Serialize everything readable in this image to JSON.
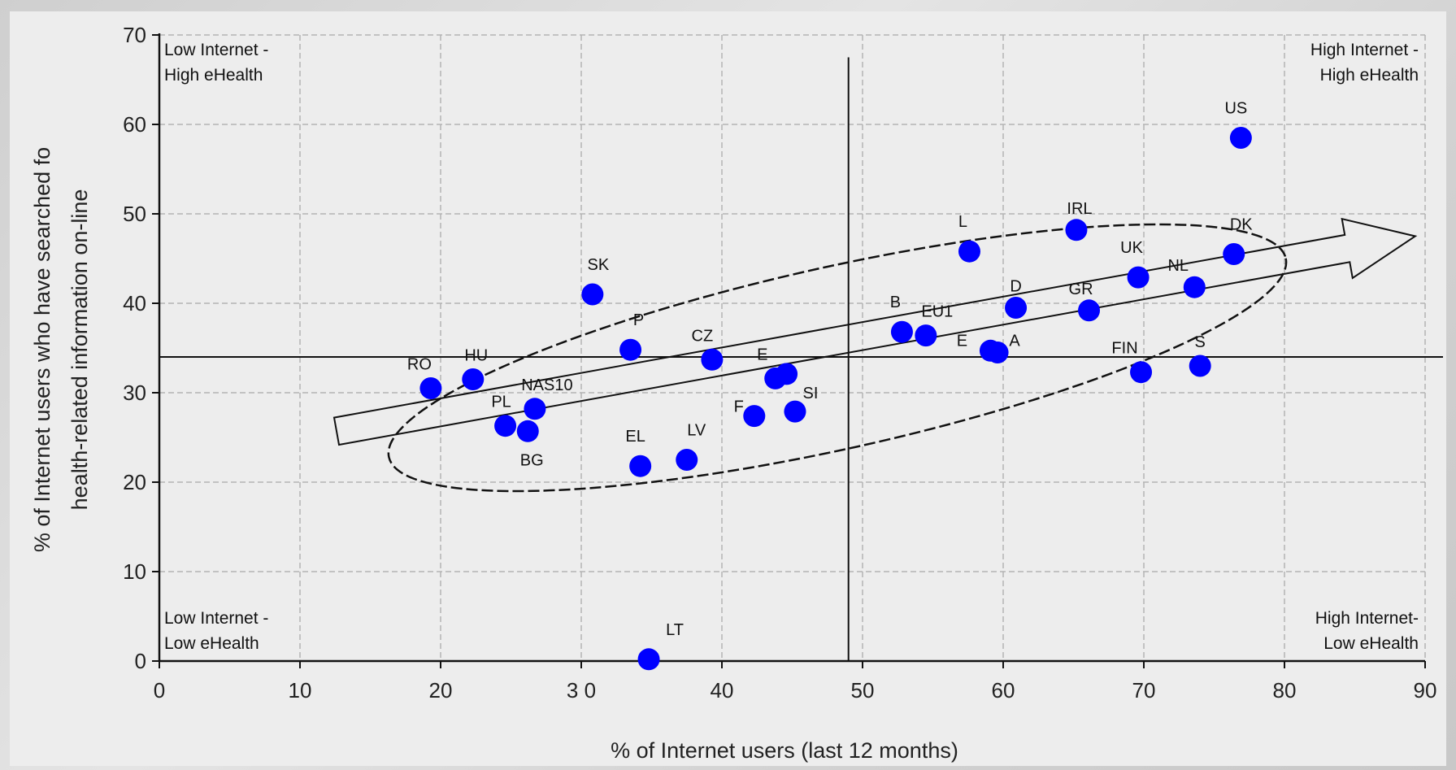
{
  "chart_data": {
    "type": "scatter",
    "xlabel": "% of Internet users (last 12 months)",
    "ylabel_lines": [
      "% of Internet users who have searched fo",
      "health-related information on-line"
    ],
    "xlim": [
      0,
      90
    ],
    "ylim": [
      0,
      70
    ],
    "x_ticks": [
      "0",
      "10",
      "20",
      "3 0",
      "40",
      "50",
      "60",
      "70",
      "80",
      "90"
    ],
    "y_ticks": [
      "0",
      "10",
      "20",
      "30",
      "40",
      "50",
      "60",
      "70"
    ],
    "grid": true,
    "point_color": "#0000ff",
    "threshold_x": 49,
    "threshold_y": 34,
    "quadrant_labels": {
      "top_left": [
        "Low Internet -",
        "High eHealth"
      ],
      "top_right": [
        "High Internet -",
        "High eHealth"
      ],
      "bottom_left": [
        "Low Internet -",
        "Low eHealth"
      ],
      "bottom_right": [
        "High Internet-",
        "Low eHealth"
      ]
    },
    "points": [
      {
        "label": "RO",
        "x": 19.3,
        "y": 30.5
      },
      {
        "label": "HU",
        "x": 22.3,
        "y": 31.5
      },
      {
        "label": "PL",
        "x": 24.6,
        "y": 26.3
      },
      {
        "label": "BG",
        "x": 26.2,
        "y": 25.7
      },
      {
        "label": "NAS10",
        "x": 26.7,
        "y": 28.2
      },
      {
        "label": "SK",
        "x": 30.8,
        "y": 41
      },
      {
        "label": "P",
        "x": 33.5,
        "y": 34.8
      },
      {
        "label": "EL",
        "x": 34.2,
        "y": 21.8
      },
      {
        "label": "LT",
        "x": 34.8,
        "y": 0.2
      },
      {
        "label": "LV",
        "x": 37.5,
        "y": 22.5
      },
      {
        "label": "CZ",
        "x": 39.3,
        "y": 33.7
      },
      {
        "label": "F",
        "x": 42.3,
        "y": 27.4
      },
      {
        "label": "E",
        "x": 43.8,
        "y": 31.6
      },
      {
        "label": "",
        "x": 44.6,
        "y": 32.1
      },
      {
        "label": "SI",
        "x": 45.2,
        "y": 27.9
      },
      {
        "label": "B",
        "x": 52.8,
        "y": 36.8
      },
      {
        "label": "EU1",
        "x": 54.5,
        "y": 36.4
      },
      {
        "label": "L",
        "x": 57.6,
        "y": 45.8
      },
      {
        "label": "E",
        "x": 59.1,
        "y": 34.7
      },
      {
        "label": "A",
        "x": 59.6,
        "y": 34.5
      },
      {
        "label": "D",
        "x": 60.9,
        "y": 39.5
      },
      {
        "label": "IRL",
        "x": 65.2,
        "y": 48.2
      },
      {
        "label": "GR",
        "x": 66.1,
        "y": 39.2
      },
      {
        "label": "UK",
        "x": 69.6,
        "y": 42.9
      },
      {
        "label": "FIN",
        "x": 69.8,
        "y": 32.3
      },
      {
        "label": "NL",
        "x": 73.6,
        "y": 41.8
      },
      {
        "label": "S",
        "x": 74,
        "y": 33
      },
      {
        "label": "DK",
        "x": 76.4,
        "y": 45.5
      },
      {
        "label": "US",
        "x": 76.9,
        "y": 58.5
      }
    ]
  }
}
